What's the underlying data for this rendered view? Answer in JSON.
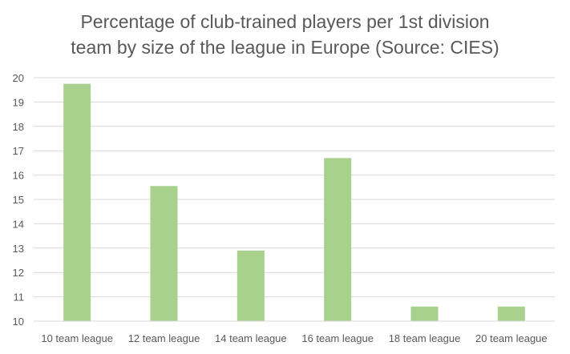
{
  "chart_data": {
    "type": "bar",
    "title_lines": [
      "Percentage of club-trained players per 1st division",
      "team by size of the league in Europe (Source: CIES)"
    ],
    "categories": [
      "10 team league",
      "12 team league",
      "14 team league",
      "16 team league",
      "18 team league",
      "20 team league"
    ],
    "values": [
      19.75,
      15.55,
      12.9,
      16.7,
      10.6,
      10.6
    ],
    "ylim": [
      10,
      20
    ],
    "yticks": [
      10,
      11,
      12,
      13,
      14,
      15,
      16,
      17,
      18,
      19,
      20
    ],
    "grid": true,
    "legend": "none",
    "bar_color": "#a9d18e",
    "grid_color": "#d9d9d9"
  }
}
